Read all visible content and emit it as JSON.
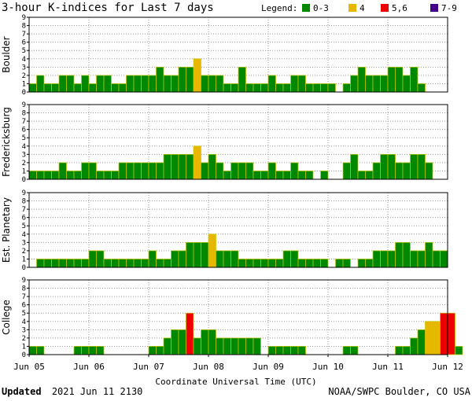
{
  "title": "3-hour K-indices for Last 7 days",
  "legend": {
    "label": "Legend:",
    "items": [
      {
        "name": "0-3",
        "color": "#008800"
      },
      {
        "name": "4",
        "color": "#e8b800"
      },
      {
        "name": "5,6",
        "color": "#ee0000"
      },
      {
        "name": "7-9",
        "color": "#440088"
      }
    ]
  },
  "x_axis_label": "Coordinate Universal Time (UTC)",
  "footer": {
    "updated_label": "Updated",
    "updated_value": "2021 Jun 11 2130",
    "source": "NOAA/SWPC Boulder, CO USA"
  },
  "chart_data": {
    "type": "bar",
    "x_ticks": [
      "Jun 05",
      "Jun 06",
      "Jun 07",
      "Jun 08",
      "Jun 09",
      "Jun 10",
      "Jun 11",
      "Jun 12"
    ],
    "ylim": [
      0,
      9
    ],
    "y_ticks": [
      0,
      1,
      2,
      3,
      4,
      5,
      6,
      7,
      8,
      9
    ],
    "grid": true,
    "bar_interval_hours": 3,
    "panels": [
      {
        "name": "Boulder",
        "values": [
          1,
          2,
          1,
          1,
          2,
          2,
          1,
          2,
          1,
          2,
          2,
          1,
          1,
          2,
          2,
          2,
          2,
          3,
          2,
          2,
          3,
          3,
          4,
          2,
          2,
          2,
          1,
          1,
          3,
          1,
          1,
          1,
          2,
          1,
          1,
          2,
          2,
          1,
          1,
          1,
          1,
          0,
          1,
          2,
          3,
          2,
          2,
          2,
          3,
          3,
          2,
          3,
          1,
          0
        ]
      },
      {
        "name": "Fredericksburg",
        "values": [
          1,
          1,
          1,
          1,
          2,
          1,
          1,
          2,
          2,
          1,
          1,
          1,
          2,
          2,
          2,
          2,
          2,
          2,
          3,
          3,
          3,
          3,
          4,
          2,
          3,
          2,
          1,
          2,
          2,
          2,
          1,
          1,
          2,
          1,
          1,
          2,
          1,
          1,
          0,
          1,
          0,
          0,
          2,
          3,
          1,
          1,
          2,
          3,
          3,
          2,
          2,
          3,
          3,
          2,
          0
        ]
      },
      {
        "name": "Est. Planetary",
        "values": [
          0,
          1,
          1,
          1,
          1,
          1,
          1,
          1,
          2,
          2,
          1,
          1,
          1,
          1,
          1,
          1,
          2,
          1,
          1,
          2,
          2,
          3,
          3,
          3,
          4,
          2,
          2,
          2,
          1,
          1,
          1,
          1,
          1,
          1,
          2,
          2,
          1,
          1,
          1,
          1,
          0,
          1,
          1,
          0,
          1,
          1,
          2,
          2,
          2,
          3,
          3,
          2,
          2,
          3,
          2,
          2
        ]
      },
      {
        "name": "College",
        "values": [
          1,
          1,
          0,
          0,
          0,
          0,
          1,
          1,
          1,
          1,
          0,
          0,
          0,
          0,
          0,
          0,
          1,
          1,
          2,
          3,
          3,
          5,
          2,
          3,
          3,
          2,
          2,
          2,
          2,
          2,
          2,
          0,
          1,
          1,
          1,
          1,
          1,
          0,
          0,
          0,
          0,
          0,
          1,
          1,
          0,
          0,
          0,
          0,
          0,
          1,
          1,
          2,
          3,
          4,
          4,
          5,
          5,
          1,
          0
        ]
      }
    ]
  }
}
